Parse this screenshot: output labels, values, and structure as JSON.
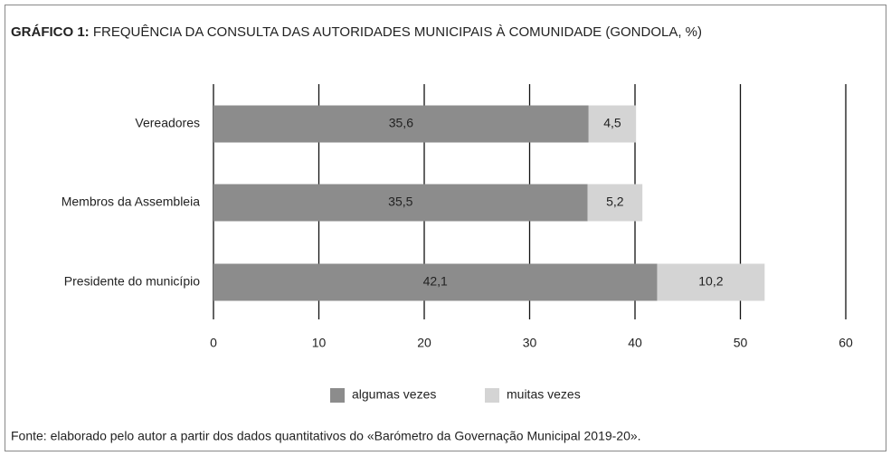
{
  "chart_data": {
    "type": "stacked_barh",
    "title_label": "GRÁFICO 1:",
    "title": "FREQUÊNCIA DA CONSULTA DAS AUTORIDADES MUNICIPAIS À COMUNIDADE (GONDOLA, %)",
    "categories": [
      "Vereadores",
      "Membros da Assembleia",
      "Presidente do município"
    ],
    "series": [
      {
        "name": "algumas vezes",
        "color": "#8c8c8c",
        "values": [
          35.6,
          35.5,
          42.1
        ],
        "value_labels": [
          "35,6",
          "35,5",
          "42,1"
        ]
      },
      {
        "name": "muitas vezes",
        "color": "#d4d4d4",
        "values": [
          4.5,
          5.2,
          10.2
        ],
        "value_labels": [
          "4,5",
          "5,2",
          "10,2"
        ]
      }
    ],
    "xlim": [
      0,
      60
    ],
    "xticks": [
      0,
      10,
      20,
      30,
      40,
      50,
      60
    ],
    "grid": true,
    "legend": "bottom",
    "source": "Fonte: elaborado pelo autor a partir dos dados quantitativos do «Barómetro da Governação Municipal 2019-20»."
  }
}
